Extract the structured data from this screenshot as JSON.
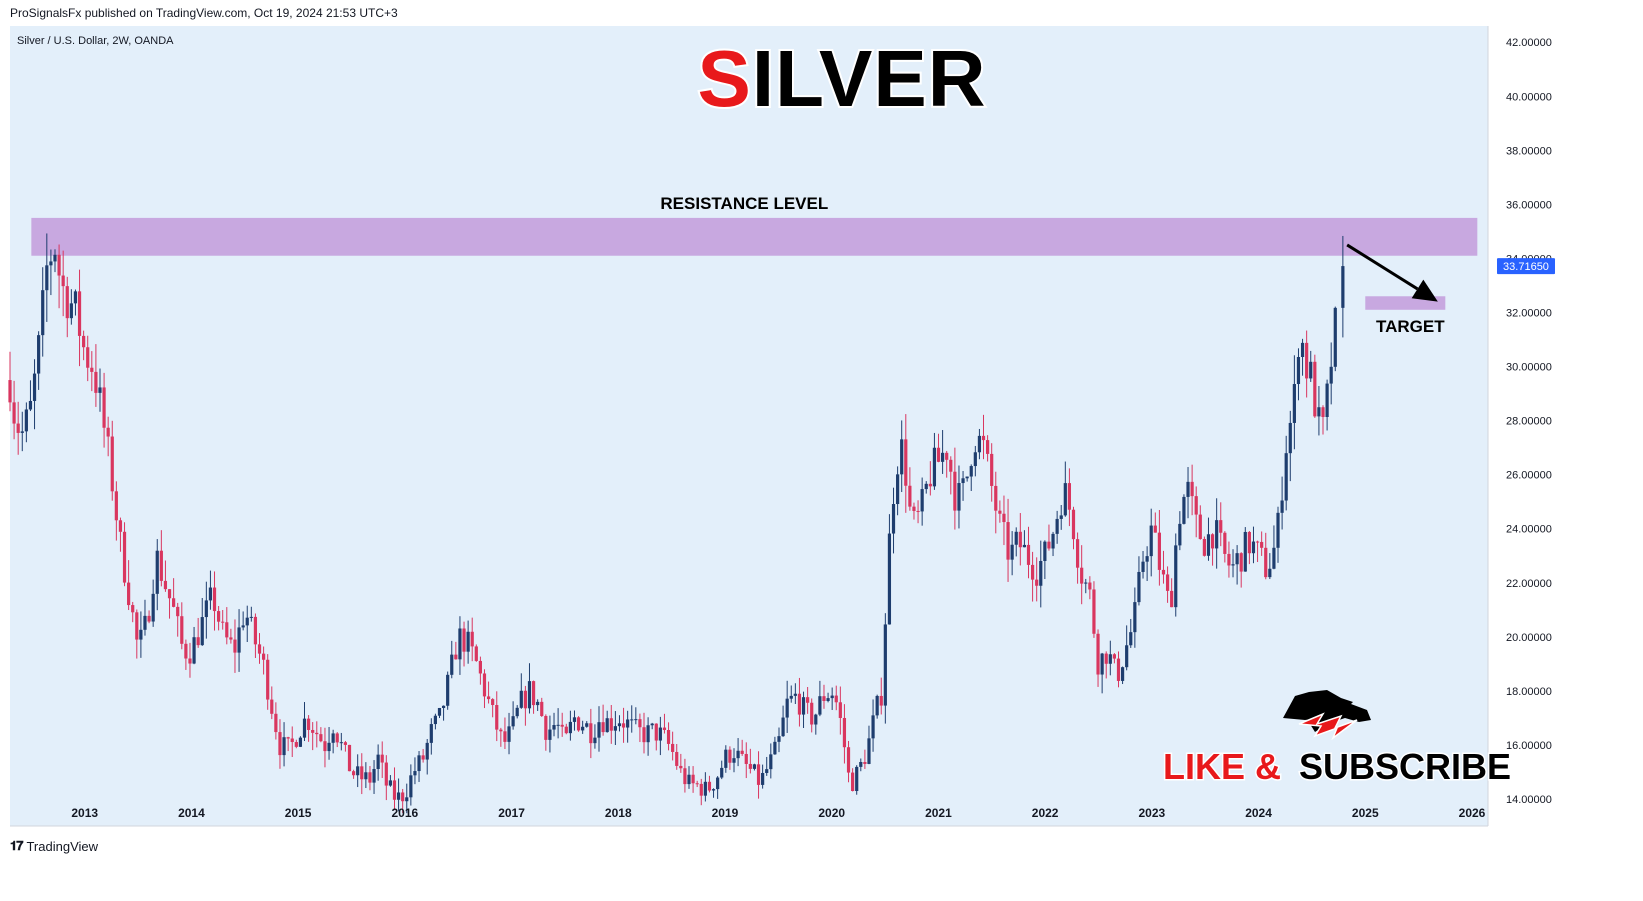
{
  "publisher": "ProSignalsFx published on TradingView.com, Oct 19, 2024 21:53 UTC+3",
  "symbol_info": "Silver / U.S. Dollar, 2W, OANDA",
  "footer_brand": "TradingView",
  "colors": {
    "plot_bg": "#e3effa",
    "up": "#1e3d6e",
    "down": "#d9365f",
    "zone": "#c8a8e0",
    "price_tag": "#2962ff",
    "title_red": "#e8191b"
  },
  "chart_data": {
    "type": "candlestick",
    "title": "SILVER",
    "timeframe": "2W",
    "ylim": [
      13,
      42.6
    ],
    "xlim": [
      2012.3,
      2026.15
    ],
    "y_ticks": [
      "42.00000",
      "40.00000",
      "38.00000",
      "36.00000",
      "34.00000",
      "32.00000",
      "30.00000",
      "28.00000",
      "26.00000",
      "24.00000",
      "22.00000",
      "20.00000",
      "18.00000",
      "16.00000",
      "14.00000"
    ],
    "x_ticks": [
      "2013",
      "2014",
      "2015",
      "2016",
      "2017",
      "2018",
      "2019",
      "2020",
      "2021",
      "2022",
      "2023",
      "2024",
      "2025",
      "2026"
    ],
    "last_price_label": "33.71650",
    "last_price": 33.7165,
    "close_anchors": [
      [
        2012.3,
        29.5
      ],
      [
        2012.35,
        28.0
      ],
      [
        2012.42,
        27.5
      ],
      [
        2012.5,
        28.5
      ],
      [
        2012.58,
        31.0
      ],
      [
        2012.65,
        33.8
      ],
      [
        2012.72,
        34.5
      ],
      [
        2012.78,
        33.0
      ],
      [
        2012.85,
        32.5
      ],
      [
        2012.92,
        32.0
      ],
      [
        2013.0,
        30.5
      ],
      [
        2013.08,
        30.0
      ],
      [
        2013.15,
        28.5
      ],
      [
        2013.25,
        26.0
      ],
      [
        2013.33,
        23.5
      ],
      [
        2013.42,
        21.5
      ],
      [
        2013.5,
        19.5
      ],
      [
        2013.58,
        20.5
      ],
      [
        2013.67,
        23.0
      ],
      [
        2013.75,
        22.0
      ],
      [
        2013.83,
        21.0
      ],
      [
        2013.92,
        19.5
      ],
      [
        2014.0,
        19.5
      ],
      [
        2014.1,
        20.5
      ],
      [
        2014.2,
        21.5
      ],
      [
        2014.3,
        20.0
      ],
      [
        2014.4,
        19.5
      ],
      [
        2014.5,
        21.0
      ],
      [
        2014.58,
        20.0
      ],
      [
        2014.67,
        19.0
      ],
      [
        2014.75,
        17.5
      ],
      [
        2014.83,
        16.0
      ],
      [
        2014.92,
        15.8
      ],
      [
        2015.0,
        16.5
      ],
      [
        2015.08,
        17.0
      ],
      [
        2015.17,
        16.5
      ],
      [
        2015.25,
        16.0
      ],
      [
        2015.33,
        16.8
      ],
      [
        2015.42,
        15.8
      ],
      [
        2015.5,
        15.0
      ],
      [
        2015.58,
        14.8
      ],
      [
        2015.67,
        14.7
      ],
      [
        2015.75,
        15.5
      ],
      [
        2015.83,
        14.5
      ],
      [
        2015.92,
        14.0
      ],
      [
        2016.0,
        14.2
      ],
      [
        2016.08,
        15.0
      ],
      [
        2016.17,
        15.5
      ],
      [
        2016.25,
        16.5
      ],
      [
        2016.33,
        17.0
      ],
      [
        2016.42,
        18.5
      ],
      [
        2016.5,
        20.0
      ],
      [
        2016.58,
        19.8
      ],
      [
        2016.67,
        19.0
      ],
      [
        2016.75,
        18.0
      ],
      [
        2016.83,
        17.0
      ],
      [
        2016.92,
        16.0
      ],
      [
        2017.0,
        16.5
      ],
      [
        2017.08,
        17.5
      ],
      [
        2017.17,
        18.0
      ],
      [
        2017.25,
        17.5
      ],
      [
        2017.33,
        16.5
      ],
      [
        2017.42,
        16.8
      ],
      [
        2017.5,
        16.0
      ],
      [
        2017.58,
        17.0
      ],
      [
        2017.67,
        16.8
      ],
      [
        2017.75,
        16.5
      ],
      [
        2017.83,
        17.0
      ],
      [
        2017.92,
        16.8
      ],
      [
        2018.0,
        17.0
      ],
      [
        2018.08,
        16.8
      ],
      [
        2018.17,
        16.5
      ],
      [
        2018.25,
        16.4
      ],
      [
        2018.33,
        16.5
      ],
      [
        2018.42,
        16.3
      ],
      [
        2018.5,
        15.8
      ],
      [
        2018.58,
        15.0
      ],
      [
        2018.67,
        14.5
      ],
      [
        2018.75,
        14.5
      ],
      [
        2018.83,
        14.3
      ],
      [
        2018.92,
        14.8
      ],
      [
        2019.0,
        15.5
      ],
      [
        2019.08,
        15.8
      ],
      [
        2019.17,
        15.3
      ],
      [
        2019.25,
        15.0
      ],
      [
        2019.33,
        14.6
      ],
      [
        2019.42,
        15.3
      ],
      [
        2019.5,
        16.0
      ],
      [
        2019.58,
        17.5
      ],
      [
        2019.67,
        17.8
      ],
      [
        2019.75,
        17.2
      ],
      [
        2019.83,
        17.0
      ],
      [
        2019.92,
        17.8
      ],
      [
        2020.0,
        18.0
      ],
      [
        2020.05,
        17.5
      ],
      [
        2020.1,
        16.5
      ],
      [
        2020.17,
        14.5
      ],
      [
        2020.25,
        15.0
      ],
      [
        2020.33,
        15.8
      ],
      [
        2020.4,
        17.0
      ],
      [
        2020.47,
        18.0
      ],
      [
        2020.53,
        23.0
      ],
      [
        2020.6,
        26.5
      ],
      [
        2020.67,
        27.0
      ],
      [
        2020.75,
        24.0
      ],
      [
        2020.83,
        24.5
      ],
      [
        2020.92,
        26.0
      ],
      [
        2021.0,
        26.5
      ],
      [
        2021.08,
        27.0
      ],
      [
        2021.17,
        25.0
      ],
      [
        2021.25,
        25.5
      ],
      [
        2021.33,
        27.5
      ],
      [
        2021.42,
        27.0
      ],
      [
        2021.5,
        25.5
      ],
      [
        2021.58,
        24.0
      ],
      [
        2021.67,
        23.0
      ],
      [
        2021.75,
        23.5
      ],
      [
        2021.83,
        23.0
      ],
      [
        2021.92,
        22.5
      ],
      [
        2022.0,
        23.0
      ],
      [
        2022.08,
        24.0
      ],
      [
        2022.17,
        25.5
      ],
      [
        2022.25,
        24.5
      ],
      [
        2022.33,
        22.5
      ],
      [
        2022.42,
        21.5
      ],
      [
        2022.5,
        19.0
      ],
      [
        2022.58,
        19.5
      ],
      [
        2022.67,
        18.5
      ],
      [
        2022.75,
        19.5
      ],
      [
        2022.83,
        20.5
      ],
      [
        2022.92,
        23.0
      ],
      [
        2023.0,
        24.0
      ],
      [
        2023.08,
        22.5
      ],
      [
        2023.17,
        21.0
      ],
      [
        2023.25,
        24.5
      ],
      [
        2023.33,
        25.5
      ],
      [
        2023.42,
        24.0
      ],
      [
        2023.5,
        23.5
      ],
      [
        2023.58,
        24.0
      ],
      [
        2023.67,
        23.0
      ],
      [
        2023.75,
        22.5
      ],
      [
        2023.83,
        23.0
      ],
      [
        2023.92,
        23.5
      ],
      [
        2024.0,
        23.0
      ],
      [
        2024.08,
        22.5
      ],
      [
        2024.17,
        23.5
      ],
      [
        2024.25,
        27.0
      ],
      [
        2024.33,
        28.5
      ],
      [
        2024.38,
        31.5
      ],
      [
        2024.45,
        30.0
      ],
      [
        2024.5,
        29.5
      ],
      [
        2024.55,
        28.0
      ],
      [
        2024.6,
        27.5
      ],
      [
        2024.65,
        29.0
      ],
      [
        2024.7,
        31.0
      ],
      [
        2024.75,
        32.0
      ],
      [
        2024.79,
        33.7
      ]
    ],
    "resistance_zone": {
      "label": "RESISTANCE LEVEL",
      "range": [
        34.1,
        35.5
      ],
      "x_range": [
        2012.5,
        2026.05
      ]
    },
    "target_zone": {
      "label": "TARGET",
      "range": [
        32.1,
        32.6
      ],
      "x_range": [
        2025.0,
        2025.75
      ]
    },
    "arrow": {
      "from": [
        2024.83,
        34.5
      ],
      "to": [
        2025.68,
        32.4
      ]
    }
  },
  "branding": {
    "cta_part1": "LIKE &",
    "cta_part2": "SUBSCRIBE",
    "logo_icon": "bull-bear-icon"
  }
}
